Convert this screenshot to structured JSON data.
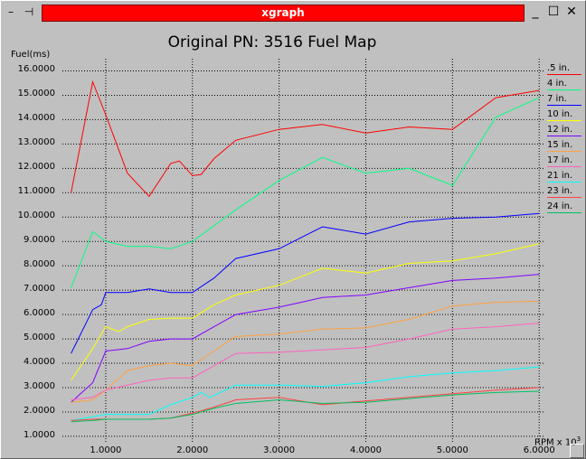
{
  "window": {
    "title": "xgraph",
    "menu_icon": "window-menu-icon",
    "pin_icon": "pin-icon",
    "minimize_icon": "minimize-icon",
    "maximize_icon": "maximize-icon",
    "close_icon": "close-icon",
    "buttons": {
      "minimize": "_",
      "maximize": "☐",
      "close": "✕",
      "menu": "–",
      "pin": "⊣"
    }
  },
  "chart_data": {
    "type": "line",
    "title": "Original PN: 3516 Fuel Map",
    "ylabel": "Fuel(ms)",
    "xlabel": "RPM x 10",
    "xlabel_exponent": "3",
    "xlim": [
      0.5,
      6.05
    ],
    "ylim": [
      0.7,
      16.5
    ],
    "grid": true,
    "grid_style": "dotted",
    "legend_placement": "right",
    "x_ticks": [
      "1.0000",
      "2.0000",
      "3.0000",
      "4.0000",
      "5.0000",
      "6.0000"
    ],
    "x_tick_values": [
      1,
      2,
      3,
      4,
      5,
      6
    ],
    "y_ticks": [
      "1.0000",
      "2.0000",
      "3.0000",
      "4.0000",
      "5.0000",
      "6.0000",
      "7.0000",
      "8.0000",
      "9.0000",
      "10.0000",
      "11.0000",
      "12.0000",
      "13.0000",
      "14.0000",
      "15.0000",
      "16.0000"
    ],
    "y_tick_values": [
      1,
      2,
      3,
      4,
      5,
      6,
      7,
      8,
      9,
      10,
      11,
      12,
      13,
      14,
      15,
      16
    ],
    "series": [
      {
        "name": ".5 in.",
        "color": "#ff0000",
        "points": [
          [
            0.6,
            11.0
          ],
          [
            0.85,
            15.55
          ],
          [
            1.0,
            14.2
          ],
          [
            1.25,
            11.8
          ],
          [
            1.5,
            10.85
          ],
          [
            1.75,
            12.2
          ],
          [
            1.85,
            12.3
          ],
          [
            2.0,
            11.7
          ],
          [
            2.1,
            11.75
          ],
          [
            2.25,
            12.4
          ],
          [
            2.5,
            13.15
          ],
          [
            3.0,
            13.6
          ],
          [
            3.5,
            13.8
          ],
          [
            4.0,
            13.45
          ],
          [
            4.5,
            13.7
          ],
          [
            5.0,
            13.6
          ],
          [
            5.5,
            14.9
          ],
          [
            6.0,
            15.2
          ]
        ]
      },
      {
        "name": "4 in.",
        "color": "#00ff80",
        "points": [
          [
            0.6,
            7.1
          ],
          [
            0.85,
            9.4
          ],
          [
            1.0,
            9.0
          ],
          [
            1.25,
            8.8
          ],
          [
            1.5,
            8.8
          ],
          [
            1.75,
            8.7
          ],
          [
            2.0,
            9.0
          ],
          [
            2.5,
            10.3
          ],
          [
            3.0,
            11.5
          ],
          [
            3.5,
            12.45
          ],
          [
            4.0,
            11.8
          ],
          [
            4.5,
            12.0
          ],
          [
            5.0,
            11.3
          ],
          [
            5.5,
            14.1
          ],
          [
            6.0,
            14.9
          ]
        ]
      },
      {
        "name": "7 in.",
        "color": "#0000ff",
        "points": [
          [
            0.6,
            4.4
          ],
          [
            0.85,
            6.2
          ],
          [
            0.95,
            6.4
          ],
          [
            1.0,
            6.9
          ],
          [
            1.25,
            6.9
          ],
          [
            1.5,
            7.05
          ],
          [
            1.75,
            6.9
          ],
          [
            2.0,
            6.9
          ],
          [
            2.25,
            7.5
          ],
          [
            2.5,
            8.3
          ],
          [
            3.0,
            8.7
          ],
          [
            3.5,
            9.6
          ],
          [
            4.0,
            9.3
          ],
          [
            4.5,
            9.8
          ],
          [
            5.0,
            9.95
          ],
          [
            5.5,
            10.0
          ],
          [
            6.0,
            10.15
          ]
        ]
      },
      {
        "name": "10 in.",
        "color": "#ffff00",
        "points": [
          [
            0.6,
            3.3
          ],
          [
            0.85,
            4.6
          ],
          [
            1.0,
            5.5
          ],
          [
            1.15,
            5.3
          ],
          [
            1.25,
            5.5
          ],
          [
            1.5,
            5.8
          ],
          [
            1.75,
            5.85
          ],
          [
            2.0,
            5.85
          ],
          [
            2.25,
            6.4
          ],
          [
            2.5,
            6.8
          ],
          [
            3.0,
            7.2
          ],
          [
            3.5,
            7.9
          ],
          [
            4.0,
            7.7
          ],
          [
            4.5,
            8.1
          ],
          [
            5.0,
            8.2
          ],
          [
            5.5,
            8.5
          ],
          [
            6.0,
            8.9
          ]
        ]
      },
      {
        "name": "12 in.",
        "color": "#8000ff",
        "points": [
          [
            0.6,
            2.4
          ],
          [
            0.85,
            3.2
          ],
          [
            1.0,
            4.5
          ],
          [
            1.25,
            4.6
          ],
          [
            1.5,
            4.9
          ],
          [
            1.75,
            5.0
          ],
          [
            2.0,
            5.0
          ],
          [
            2.25,
            5.5
          ],
          [
            2.5,
            6.0
          ],
          [
            3.0,
            6.3
          ],
          [
            3.5,
            6.7
          ],
          [
            4.0,
            6.8
          ],
          [
            4.5,
            7.1
          ],
          [
            5.0,
            7.4
          ],
          [
            5.5,
            7.5
          ],
          [
            6.0,
            7.65
          ]
        ]
      },
      {
        "name": "15 in.",
        "color": "#ffa040",
        "points": [
          [
            0.6,
            2.4
          ],
          [
            0.85,
            2.5
          ],
          [
            1.0,
            2.9
          ],
          [
            1.25,
            3.7
          ],
          [
            1.5,
            3.9
          ],
          [
            1.75,
            4.0
          ],
          [
            2.0,
            3.9
          ],
          [
            2.25,
            4.5
          ],
          [
            2.5,
            5.1
          ],
          [
            3.0,
            5.2
          ],
          [
            3.5,
            5.4
          ],
          [
            4.0,
            5.45
          ],
          [
            4.5,
            5.8
          ],
          [
            5.0,
            6.35
          ],
          [
            5.5,
            6.5
          ],
          [
            6.0,
            6.55
          ]
        ]
      },
      {
        "name": "17 in.",
        "color": "#ff60c0",
        "points": [
          [
            0.6,
            2.5
          ],
          [
            0.85,
            2.6
          ],
          [
            1.0,
            2.9
          ],
          [
            1.25,
            3.1
          ],
          [
            1.5,
            3.3
          ],
          [
            1.75,
            3.4
          ],
          [
            2.0,
            3.4
          ],
          [
            2.25,
            3.9
          ],
          [
            2.5,
            4.4
          ],
          [
            3.0,
            4.45
          ],
          [
            3.5,
            4.55
          ],
          [
            4.0,
            4.65
          ],
          [
            4.5,
            5.0
          ],
          [
            5.0,
            5.4
          ],
          [
            5.5,
            5.5
          ],
          [
            6.0,
            5.65
          ]
        ]
      },
      {
        "name": "21 in.",
        "color": "#00ffff",
        "points": [
          [
            0.6,
            1.65
          ],
          [
            0.85,
            1.8
          ],
          [
            1.0,
            1.9
          ],
          [
            1.25,
            1.9
          ],
          [
            1.5,
            1.9
          ],
          [
            1.75,
            2.3
          ],
          [
            2.0,
            2.6
          ],
          [
            2.1,
            2.8
          ],
          [
            2.2,
            2.6
          ],
          [
            2.5,
            3.1
          ],
          [
            3.0,
            3.1
          ],
          [
            3.5,
            3.05
          ],
          [
            4.0,
            3.2
          ],
          [
            4.5,
            3.45
          ],
          [
            5.0,
            3.6
          ],
          [
            5.5,
            3.7
          ],
          [
            6.0,
            3.85
          ]
        ]
      },
      {
        "name": "23 in.",
        "color": "#ff4040",
        "points": [
          [
            0.6,
            1.65
          ],
          [
            0.85,
            1.7
          ],
          [
            1.0,
            1.7
          ],
          [
            1.25,
            1.7
          ],
          [
            1.5,
            1.7
          ],
          [
            1.75,
            1.75
          ],
          [
            2.0,
            1.95
          ],
          [
            2.25,
            2.2
          ],
          [
            2.5,
            2.5
          ],
          [
            3.0,
            2.6
          ],
          [
            3.5,
            2.3
          ],
          [
            4.0,
            2.45
          ],
          [
            4.5,
            2.6
          ],
          [
            5.0,
            2.75
          ],
          [
            5.5,
            2.9
          ],
          [
            6.0,
            3.0
          ]
        ]
      },
      {
        "name": "24 in.",
        "color": "#00c060",
        "points": [
          [
            0.6,
            1.6
          ],
          [
            0.85,
            1.65
          ],
          [
            1.0,
            1.7
          ],
          [
            1.25,
            1.7
          ],
          [
            1.5,
            1.7
          ],
          [
            1.75,
            1.75
          ],
          [
            2.0,
            1.9
          ],
          [
            2.25,
            2.15
          ],
          [
            2.5,
            2.35
          ],
          [
            3.0,
            2.5
          ],
          [
            3.5,
            2.35
          ],
          [
            4.0,
            2.4
          ],
          [
            4.5,
            2.55
          ],
          [
            5.0,
            2.7
          ],
          [
            5.5,
            2.8
          ],
          [
            6.0,
            2.85
          ]
        ]
      }
    ]
  }
}
